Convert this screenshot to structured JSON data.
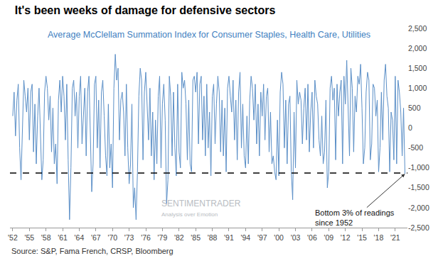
{
  "chart_data": {
    "type": "line",
    "title": "It's been weeks of damage for defensive sectors",
    "subtitle": "Average McClellam Summation Index for Consumer Staples, Health Care, Utilities",
    "source": "Source: S&P, Fama French, CRSP, Bloomberg",
    "logo": [
      "SENTIMENTRADER",
      "Analysis over Emotion"
    ],
    "color": "#5b8fc7",
    "x": [
      1952,
      1952.25,
      1952.5,
      1952.75,
      1953,
      1953.25,
      1953.5,
      1953.75,
      1954,
      1954.25,
      1954.5,
      1954.75,
      1955,
      1955.25,
      1955.5,
      1955.75,
      1956,
      1956.25,
      1956.5,
      1956.75,
      1957,
      1957.25,
      1957.5,
      1957.75,
      1958,
      1958.25,
      1958.5,
      1958.75,
      1959,
      1959.25,
      1959.5,
      1959.75,
      1960,
      1960.25,
      1960.5,
      1960.75,
      1961,
      1961.25,
      1961.5,
      1961.75,
      1962,
      1962.25,
      1962.5,
      1962.75,
      1963,
      1963.25,
      1963.5,
      1963.75,
      1964,
      1964.25,
      1964.5,
      1964.75,
      1965,
      1965.25,
      1965.5,
      1965.75,
      1966,
      1966.25,
      1966.5,
      1966.75,
      1967,
      1967.25,
      1967.5,
      1967.75,
      1968,
      1968.25,
      1968.5,
      1968.75,
      1969,
      1969.25,
      1969.5,
      1969.75,
      1970,
      1970.25,
      1970.5,
      1970.75,
      1971,
      1971.25,
      1971.5,
      1971.75,
      1972,
      1972.25,
      1972.5,
      1972.75,
      1973,
      1973.25,
      1973.5,
      1973.75,
      1974,
      1974.25,
      1974.5,
      1974.75,
      1975,
      1975.25,
      1975.5,
      1975.75,
      1976,
      1976.25,
      1976.5,
      1976.75,
      1977,
      1977.25,
      1977.5,
      1977.75,
      1978,
      1978.25,
      1978.5,
      1978.75,
      1979,
      1979.25,
      1979.5,
      1979.75,
      1980,
      1980.25,
      1980.5,
      1980.75,
      1981,
      1981.25,
      1981.5,
      1981.75,
      1982,
      1982.25,
      1982.5,
      1982.75,
      1983,
      1983.25,
      1983.5,
      1983.75,
      1984,
      1984.25,
      1984.5,
      1984.75,
      1985,
      1985.25,
      1985.5,
      1985.75,
      1986,
      1986.25,
      1986.5,
      1986.75,
      1987,
      1987.25,
      1987.5,
      1987.75,
      1988,
      1988.25,
      1988.5,
      1988.75,
      1989,
      1989.25,
      1989.5,
      1989.75,
      1990,
      1990.25,
      1990.5,
      1990.75,
      1991,
      1991.25,
      1991.5,
      1991.75,
      1992,
      1992.25,
      1992.5,
      1992.75,
      1993,
      1993.25,
      1993.5,
      1993.75,
      1994,
      1994.25,
      1994.5,
      1994.75,
      1995,
      1995.25,
      1995.5,
      1995.75,
      1996,
      1996.25,
      1996.5,
      1996.75,
      1997,
      1997.25,
      1997.5,
      1997.75,
      1998,
      1998.25,
      1998.5,
      1998.75,
      1999,
      1999.25,
      1999.5,
      1999.75,
      2000,
      2000.25,
      2000.5,
      2000.75,
      2001,
      2001.25,
      2001.5,
      2001.75,
      2002,
      2002.25,
      2002.5,
      2002.75,
      2003,
      2003.25,
      2003.5,
      2003.75,
      2004,
      2004.25,
      2004.5,
      2004.75,
      2005,
      2005.25,
      2005.5,
      2005.75,
      2006,
      2006.25,
      2006.5,
      2006.75,
      2007,
      2007.25,
      2007.5,
      2007.75,
      2008,
      2008.25,
      2008.5,
      2008.75,
      2009,
      2009.25,
      2009.5,
      2009.75,
      2010,
      2010.25,
      2010.5,
      2010.75,
      2011,
      2011.25,
      2011.5,
      2011.75,
      2012,
      2012.25,
      2012.5,
      2012.75,
      2013,
      2013.25,
      2013.5,
      2013.75,
      2014,
      2014.25,
      2014.5,
      2014.75,
      2015,
      2015.25,
      2015.5,
      2015.75,
      2016,
      2016.25,
      2016.5,
      2016.75,
      2017,
      2017.25,
      2017.5,
      2017.75,
      2018,
      2018.25,
      2018.5,
      2018.75,
      2019,
      2019.25,
      2019.5,
      2019.75,
      2020,
      2020.25,
      2020.5,
      2020.75,
      2021,
      2021.25,
      2021.5,
      2021.75,
      2022,
      2022.25,
      2022.5,
      2022.75
    ],
    "values": [
      300,
      900,
      -200,
      700,
      1100,
      -500,
      -1300,
      200,
      1200,
      800,
      400,
      1000,
      -300,
      900,
      1100,
      -600,
      600,
      -900,
      300,
      1000,
      -400,
      -1300,
      -800,
      900,
      1300,
      1000,
      200,
      800,
      -600,
      500,
      -900,
      -400,
      -1400,
      700,
      1200,
      400,
      1300,
      800,
      -300,
      1100,
      -800,
      -2300,
      -1000,
      1000,
      1200,
      300,
      900,
      -500,
      800,
      1300,
      -400,
      200,
      1000,
      -700,
      900,
      1300,
      -400,
      -1600,
      -900,
      1100,
      1300,
      -500,
      700,
      -1000,
      900,
      1200,
      300,
      -700,
      -1200,
      600,
      -1000,
      -400,
      -1500,
      1000,
      1850,
      1200,
      1500,
      -300,
      700,
      900,
      400,
      -700,
      1100,
      -500,
      -1400,
      -900,
      600,
      -2000,
      -1500,
      -2300,
      -1100,
      800,
      1500,
      1200,
      -800,
      900,
      1400,
      600,
      -300,
      1000,
      -700,
      400,
      -1300,
      200,
      -900,
      800,
      1300,
      -1000,
      600,
      1100,
      200,
      -1900,
      -1300,
      1300,
      800,
      -700,
      900,
      -500,
      -1200,
      1100,
      -600,
      -1000,
      1400,
      1000,
      1200,
      600,
      -800,
      700,
      -900,
      -1100,
      1200,
      1300,
      900,
      1400,
      -400,
      1100,
      1300,
      -300,
      800,
      -700,
      1100,
      -500,
      400,
      -1200,
      800,
      1100,
      -400,
      600,
      1300,
      900,
      -600,
      700,
      -700,
      500,
      -1100,
      1000,
      1300,
      800,
      400,
      1200,
      -300,
      700,
      -800,
      900,
      1400,
      -500,
      600,
      -700,
      -1000,
      300,
      -900,
      700,
      1300,
      1000,
      200,
      1100,
      -400,
      600,
      -700,
      900,
      300,
      1100,
      -300,
      800,
      1000,
      -600,
      400,
      -900,
      -700,
      -1100,
      -1300,
      200,
      -1200,
      900,
      1400,
      1100,
      -500,
      700,
      -900,
      600,
      800,
      -1100,
      -1800,
      400,
      -1000,
      1200,
      600,
      900,
      700,
      -400,
      500,
      1000,
      -300,
      1100,
      -600,
      400,
      900,
      -500,
      1200,
      800,
      600,
      -300,
      -700,
      300,
      -900,
      -600,
      700,
      -1500,
      -1100,
      1000,
      1300,
      700,
      1000,
      -800,
      1100,
      300,
      900,
      1200,
      -900,
      1300,
      600,
      1700,
      500,
      -700,
      1500,
      1000,
      -600,
      800,
      400,
      1300,
      1100,
      1600,
      500,
      -900,
      -500,
      900,
      1400,
      1200,
      -800,
      -400,
      1100,
      1000,
      300,
      700,
      -1100,
      -500,
      900,
      -300,
      1200,
      1600,
      800,
      500,
      -1100,
      400,
      200,
      -800,
      1300,
      -900,
      1200,
      900,
      400,
      -700,
      500,
      -1150
    ],
    "xlim": [
      1951.5,
      2023.2
    ],
    "xticks": [
      {
        "value": 1952,
        "label": "'52"
      },
      {
        "value": 1955,
        "label": "'55"
      },
      {
        "value": 1958,
        "label": "'58"
      },
      {
        "value": 1961,
        "label": "'61"
      },
      {
        "value": 1964,
        "label": "'64"
      },
      {
        "value": 1967,
        "label": "'67"
      },
      {
        "value": 1970,
        "label": "'70"
      },
      {
        "value": 1973,
        "label": "'73"
      },
      {
        "value": 1976,
        "label": "'76"
      },
      {
        "value": 1979,
        "label": "'79"
      },
      {
        "value": 1982,
        "label": "'82"
      },
      {
        "value": 1985,
        "label": "'85"
      },
      {
        "value": 1988,
        "label": "'88"
      },
      {
        "value": 1991,
        "label": "'91"
      },
      {
        "value": 1994,
        "label": "'94"
      },
      {
        "value": 1997,
        "label": "'97"
      },
      {
        "value": 2000,
        "label": "'00"
      },
      {
        "value": 2003,
        "label": "'03"
      },
      {
        "value": 2006,
        "label": "'06"
      },
      {
        "value": 2009,
        "label": "'09"
      },
      {
        "value": 2012,
        "label": "'12"
      },
      {
        "value": 2015,
        "label": "'15"
      },
      {
        "value": 2018,
        "label": "'18"
      },
      {
        "value": 2021,
        "label": "'21"
      }
    ],
    "ylim": [
      -2500,
      2500
    ],
    "yticks": [
      {
        "value": 2500,
        "label": "2,500"
      },
      {
        "value": 2000,
        "label": "2,000"
      },
      {
        "value": 1500,
        "label": "1,500"
      },
      {
        "value": 1000,
        "label": "1,000"
      },
      500,
      0,
      -500,
      {
        "value": -1000,
        "label": "-1,000"
      },
      {
        "value": -1500,
        "label": "-1,500"
      },
      {
        "value": -2000,
        "label": "-2,000"
      },
      {
        "value": -2500,
        "label": "-2,500"
      }
    ],
    "grid": false,
    "reference_line": {
      "value": -1130,
      "line_style": "dashed",
      "color": "#000000"
    },
    "annotations": [
      {
        "text": "Bottom 3% of readings\nsince 1952",
        "x": 2022.75,
        "y": -1150
      }
    ]
  }
}
